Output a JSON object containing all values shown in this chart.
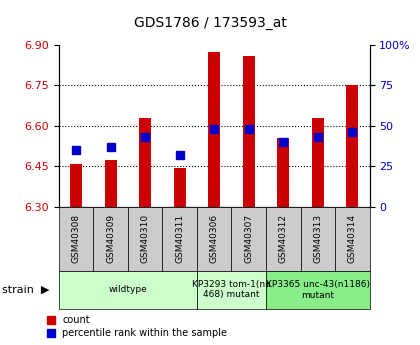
{
  "title": "GDS1786 / 173593_at",
  "samples": [
    "GSM40308",
    "GSM40309",
    "GSM40310",
    "GSM40311",
    "GSM40306",
    "GSM40307",
    "GSM40312",
    "GSM40313",
    "GSM40314"
  ],
  "count_values": [
    6.46,
    6.475,
    6.63,
    6.445,
    6.875,
    6.86,
    6.555,
    6.63,
    6.75
  ],
  "percentile_values": [
    35,
    37,
    43,
    32,
    48,
    48,
    40,
    43,
    46
  ],
  "ylim": [
    6.3,
    6.9
  ],
  "yticks": [
    6.3,
    6.45,
    6.6,
    6.75,
    6.9
  ],
  "y2lim": [
    0,
    100
  ],
  "y2ticks": [
    0,
    25,
    50,
    75,
    100
  ],
  "bar_color": "#cc0000",
  "dot_color": "#0000cc",
  "bar_width": 0.35,
  "dot_size": 6,
  "left_color": "#cc0000",
  "right_color": "#0000cc",
  "grid_lines": [
    6.45,
    6.6,
    6.75
  ],
  "group_ranges": [
    {
      "start": 0,
      "end": 3,
      "label": "wildtype",
      "color": "#ccffcc"
    },
    {
      "start": 4,
      "end": 5,
      "label": "KP3293 tom-1(nu\n468) mutant",
      "color": "#ccffcc"
    },
    {
      "start": 6,
      "end": 8,
      "label": "KP3365 unc-43(n1186)\nmutant",
      "color": "#88ee88"
    }
  ],
  "legend_count": "count",
  "legend_pct": "percentile rank within the sample",
  "sample_box_color": "#cccccc",
  "fig_width": 4.2,
  "fig_height": 3.45,
  "dpi": 100
}
